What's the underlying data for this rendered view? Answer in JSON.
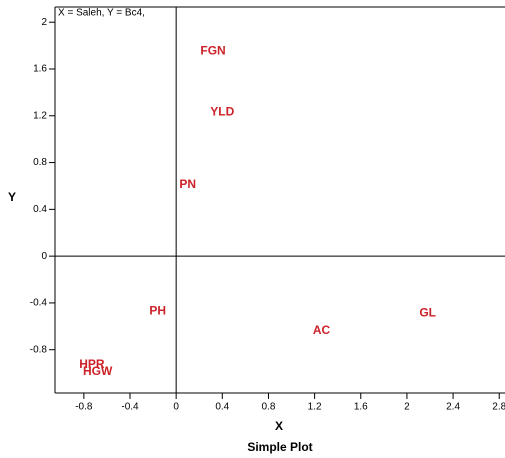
{
  "chart_data": {
    "type": "scatter",
    "title": "Simple Plot",
    "annotation": "X = Saleh, Y = Bc4,",
    "x_label": "X",
    "y_label": "Y",
    "color": "#cc2229",
    "points": [
      {
        "label": "FGN",
        "x": 0.32,
        "y": 1.75
      },
      {
        "label": "YLD",
        "x": 0.4,
        "y": 1.23
      },
      {
        "label": "PN",
        "x": 0.1,
        "y": 0.61
      },
      {
        "label": "PH",
        "x": -0.16,
        "y": -0.47
      },
      {
        "label": "AC",
        "x": 1.26,
        "y": -0.64
      },
      {
        "label": "GL",
        "x": 2.18,
        "y": -0.49
      },
      {
        "label": "HPR",
        "x": -0.73,
        "y": -0.93
      },
      {
        "label": "HGW",
        "x": -0.68,
        "y": -0.99
      }
    ],
    "xlim": [
      -1.05,
      2.85
    ],
    "ylim": [
      -1.17,
      2.13
    ],
    "xticks": [
      -0.8,
      -0.4,
      0,
      0.4,
      0.8,
      1.2,
      1.6,
      2,
      2.4,
      2.8
    ],
    "yticks": [
      -0.8,
      -0.4,
      0,
      0.4,
      0.8,
      1.2,
      1.6,
      2
    ]
  }
}
